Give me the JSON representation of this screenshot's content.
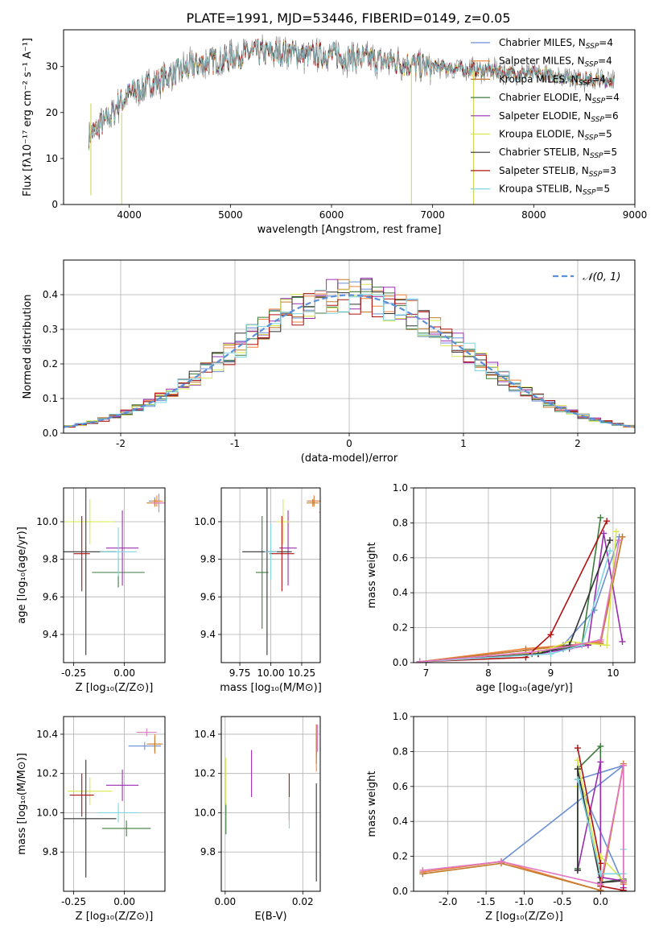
{
  "figure": {
    "title": "PLATE=1991, MJD=53446, FIBERID=0149, z=0.05"
  },
  "chart_data": [
    {
      "id": "spectrum",
      "type": "line",
      "title": "PLATE=1991, MJD=53446, FIBERID=0149, z=0.05",
      "xlabel": "wavelength [Angstrom, rest frame]",
      "ylabel": "Flux [fλ10⁻¹⁷ erg cm⁻² s⁻¹ A⁻¹]",
      "xlim": [
        3350,
        9000
      ],
      "ylim": [
        0,
        38
      ],
      "xticks": [
        4000,
        5000,
        6000,
        7000,
        8000,
        9000
      ],
      "yticks": [
        0,
        10,
        20,
        30
      ],
      "grid": false,
      "legend_position": "top-right",
      "continuum_x": [
        3600,
        3700,
        3800,
        3900,
        4000,
        4200,
        4400,
        4600,
        4800,
        5000,
        5200,
        5400,
        5600,
        5800,
        6000,
        6200,
        6400,
        6600,
        6800,
        7000,
        7200,
        7400,
        7600,
        7800,
        8000,
        8200,
        8400,
        8600,
        8800
      ],
      "continuum_y": [
        15,
        17,
        19,
        22,
        24,
        26,
        28,
        30,
        31,
        32,
        33,
        33,
        33,
        32.5,
        32.5,
        32,
        31.5,
        31,
        30.5,
        30,
        29.5,
        29.5,
        29,
        28.5,
        28.5,
        28,
        27.5,
        27,
        27
      ],
      "series": [
        {
          "name": "Chabrier MILES, N",
          "sub": "SSP",
          "suffix": "=4",
          "color": "#6b8fd6"
        },
        {
          "name": "Salpeter MILES, N",
          "sub": "SSP",
          "suffix": "=4",
          "color": "#f0823d"
        },
        {
          "name": "Kroupa MILES, N",
          "sub": "SSP",
          "suffix": "=4",
          "color": "#c27c2e"
        },
        {
          "name": "Chabrier ELODIE, N",
          "sub": "SSP",
          "suffix": "=4",
          "color": "#3d7a3d"
        },
        {
          "name": "Salpeter ELODIE, N",
          "sub": "SSP",
          "suffix": "=6",
          "color": "#9a2db0"
        },
        {
          "name": "Kroupa ELODIE, N",
          "sub": "SSP",
          "suffix": "=5",
          "color": "#d9e84d"
        },
        {
          "name": "Chabrier STELIB, N",
          "sub": "SSP",
          "suffix": "=5",
          "color": "#333333"
        },
        {
          "name": "Salpeter STELIB, N",
          "sub": "SSP",
          "suffix": "=3",
          "color": "#b01010"
        },
        {
          "name": "Kroupa STELIB, N",
          "sub": "SSP",
          "suffix": "=5",
          "color": "#7fd6e0"
        }
      ],
      "spikes": [
        {
          "x": 3620,
          "y0": 2,
          "y1": 22
        },
        {
          "x": 3925,
          "y0": 0,
          "y1": 20
        },
        {
          "x": 6790,
          "y0": 0,
          "y1": 32
        },
        {
          "x": 7405,
          "y0": 0,
          "y1": 29
        }
      ]
    },
    {
      "id": "residuals",
      "type": "line",
      "xlabel": "(data-model)/error",
      "ylabel": "Normed distribution",
      "xlim": [
        -2.5,
        2.5
      ],
      "ylim": [
        0,
        0.5
      ],
      "xticks": [
        -2,
        -1,
        0,
        1,
        2
      ],
      "yticks": [
        0.0,
        0.1,
        0.2,
        0.3,
        0.4
      ],
      "grid": true,
      "legend_position": "top-right",
      "legend_label": "𝒩(0, 1)",
      "gauss_color": "#5b8fd9",
      "bin_width": 0.1
    },
    {
      "id": "age-vs-Z",
      "type": "scatter",
      "xlabel": "Z [log₁₀(Z/Z⊙)]",
      "ylabel": "age  [log₁₀(age/yr)]",
      "xlim": [
        -0.3,
        0.2
      ],
      "ylim": [
        9.25,
        10.18
      ],
      "xticks": [
        -0.25,
        0.0
      ],
      "yticks": [
        9.4,
        9.6,
        9.8,
        10.0
      ],
      "grid": true,
      "points": [
        {
          "x": 0.15,
          "y": 10.11,
          "xerr": 0.03,
          "yerr": 0.02,
          "color": "#6b8fd6"
        },
        {
          "x": 0.16,
          "y": 10.11,
          "xerr": 0.03,
          "yerr": 0.03,
          "color": "#f0823d"
        },
        {
          "x": 0.15,
          "y": 10.1,
          "xerr": 0.04,
          "yerr": 0.02,
          "color": "#c27c2e"
        },
        {
          "x": -0.03,
          "y": 9.73,
          "xerr": 0.13,
          "yerr": 0.08,
          "color": "#3d7a3d"
        },
        {
          "x": -0.01,
          "y": 9.86,
          "xerr": 0.08,
          "yerr": 0.2,
          "color": "#9a2db0"
        },
        {
          "x": -0.17,
          "y": 10.0,
          "xerr": 0.12,
          "yerr": 0.12,
          "color": "#d9e84d"
        },
        {
          "x": -0.19,
          "y": 9.84,
          "xerr": 0.15,
          "yerr": 0.55,
          "color": "#333333"
        },
        {
          "x": -0.21,
          "y": 9.83,
          "xerr": 0.04,
          "yerr": 0.2,
          "color": "#b01010"
        },
        {
          "x": -0.03,
          "y": 9.84,
          "xerr": 0.09,
          "yerr": 0.13,
          "color": "#7fd6e0"
        },
        {
          "x": 0.17,
          "y": 10.1,
          "xerr": 0.03,
          "yerr": 0.05,
          "color": "#e377c2"
        }
      ]
    },
    {
      "id": "age-vs-mass",
      "type": "scatter",
      "xlabel": "mass [log₁₀(M/M⊙)]",
      "ylabel": "",
      "xlim": [
        9.6,
        10.4
      ],
      "ylim": [
        9.25,
        10.18
      ],
      "xticks": [
        9.75,
        10.0,
        10.25
      ],
      "yticks": [
        9.4,
        9.6,
        9.8,
        10.0
      ],
      "grid": true,
      "points": [
        {
          "x": 10.35,
          "y": 10.11,
          "xerr": 0.05,
          "yerr": 0.02,
          "color": "#6b8fd6"
        },
        {
          "x": 10.35,
          "y": 10.11,
          "xerr": 0.06,
          "yerr": 0.03,
          "color": "#f0823d"
        },
        {
          "x": 10.34,
          "y": 10.1,
          "xerr": 0.05,
          "yerr": 0.02,
          "color": "#c27c2e"
        },
        {
          "x": 9.93,
          "y": 9.73,
          "xerr": 0.05,
          "yerr": 0.3,
          "color": "#3d7a3d"
        },
        {
          "x": 10.14,
          "y": 9.86,
          "xerr": 0.07,
          "yerr": 0.2,
          "color": "#9a2db0"
        },
        {
          "x": 10.1,
          "y": 10.0,
          "xerr": 0.05,
          "yerr": 0.12,
          "color": "#d9e84d"
        },
        {
          "x": 9.97,
          "y": 9.84,
          "xerr": 0.2,
          "yerr": 0.55,
          "color": "#333333"
        },
        {
          "x": 10.09,
          "y": 9.83,
          "xerr": 0.1,
          "yerr": 0.2,
          "color": "#b01010"
        },
        {
          "x": 10.0,
          "y": 9.84,
          "xerr": 0.05,
          "yerr": 0.15,
          "color": "#7fd6e0"
        },
        {
          "x": 10.41,
          "y": 10.05,
          "xerr": 0.02,
          "yerr": 0.05,
          "color": "#e377c2"
        }
      ]
    },
    {
      "id": "weight-vs-age",
      "type": "line",
      "xlabel": "age  [log₁₀(age/yr)]",
      "ylabel": "mass weight",
      "xlim": [
        6.8,
        10.35
      ],
      "ylim": [
        0,
        1.0
      ],
      "xticks": [
        7,
        8,
        9,
        10
      ],
      "yticks": [
        0.0,
        0.2,
        0.4,
        0.6,
        0.8,
        1.0
      ],
      "grid": true,
      "series": [
        {
          "color": "#6b8fd6",
          "x": [
            6.9,
            8.6,
            9.2,
            9.7,
            10.1
          ],
          "y": [
            0.005,
            0.07,
            0.1,
            0.3,
            0.72
          ]
        },
        {
          "color": "#f0823d",
          "x": [
            6.9,
            8.6,
            9.3,
            9.8,
            10.15
          ],
          "y": [
            0.005,
            0.08,
            0.1,
            0.12,
            0.72
          ]
        },
        {
          "color": "#c27c2e",
          "x": [
            6.9,
            8.6,
            9.3,
            9.8,
            10.15
          ],
          "y": [
            0.005,
            0.07,
            0.1,
            0.11,
            0.72
          ]
        },
        {
          "color": "#3d7a3d",
          "x": [
            6.9,
            8.7,
            9.2,
            9.5,
            9.8
          ],
          "y": [
            0.005,
            0.05,
            0.08,
            0.1,
            0.83
          ]
        },
        {
          "color": "#9a2db0",
          "x": [
            6.9,
            8.8,
            9.3,
            9.6,
            9.85,
            10.15
          ],
          "y": [
            0.005,
            0.05,
            0.08,
            0.1,
            0.74,
            0.12
          ]
        },
        {
          "color": "#d9e84d",
          "x": [
            6.9,
            8.8,
            9.3,
            9.9,
            10.05
          ],
          "y": [
            0.005,
            0.06,
            0.12,
            0.1,
            0.75
          ]
        },
        {
          "color": "#333333",
          "x": [
            6.9,
            8.8,
            9.3,
            9.95
          ],
          "y": [
            0.005,
            0.05,
            0.1,
            0.7
          ]
        },
        {
          "color": "#b01010",
          "x": [
            6.9,
            8.6,
            9.0,
            9.9
          ],
          "y": [
            0.005,
            0.03,
            0.16,
            0.81
          ]
        },
        {
          "color": "#7fd6e0",
          "x": [
            6.9,
            9.0,
            9.5,
            9.95
          ],
          "y": [
            0.005,
            0.05,
            0.1,
            0.64
          ]
        },
        {
          "color": "#e377c2",
          "x": [
            6.9,
            8.7,
            9.4,
            9.8,
            10.1
          ],
          "y": [
            0.005,
            0.06,
            0.1,
            0.13,
            0.7
          ]
        }
      ]
    },
    {
      "id": "mass-vs-Z",
      "type": "scatter",
      "xlabel": "Z [log₁₀(Z/Z⊙)]",
      "ylabel": "mass [log₁₀(M/M⊙)]",
      "xlim": [
        -0.3,
        0.2
      ],
      "ylim": [
        9.6,
        10.49
      ],
      "xticks": [
        -0.25,
        0.0
      ],
      "yticks": [
        9.8,
        10.0,
        10.2,
        10.4
      ],
      "grid": true,
      "points": [
        {
          "x": 0.1,
          "y": 10.34,
          "xerr": 0.08,
          "yerr": 0.02,
          "color": "#6b8fd6"
        },
        {
          "x": 0.15,
          "y": 10.35,
          "xerr": 0.03,
          "yerr": 0.05,
          "color": "#f0823d"
        },
        {
          "x": 0.15,
          "y": 10.35,
          "xerr": 0.04,
          "yerr": 0.04,
          "color": "#c27c2e"
        },
        {
          "x": 0.01,
          "y": 9.92,
          "xerr": 0.12,
          "yerr": 0.04,
          "color": "#3d7a3d"
        },
        {
          "x": -0.01,
          "y": 10.14,
          "xerr": 0.08,
          "yerr": 0.08,
          "color": "#9a2db0"
        },
        {
          "x": -0.17,
          "y": 10.11,
          "xerr": 0.11,
          "yerr": 0.07,
          "color": "#d9e84d"
        },
        {
          "x": -0.19,
          "y": 9.97,
          "xerr": 0.15,
          "yerr": 0.3,
          "color": "#333333"
        },
        {
          "x": -0.21,
          "y": 10.09,
          "xerr": 0.06,
          "yerr": 0.11,
          "color": "#b01010"
        },
        {
          "x": -0.03,
          "y": 10.0,
          "xerr": 0.1,
          "yerr": 0.05,
          "color": "#7fd6e0"
        },
        {
          "x": 0.11,
          "y": 10.41,
          "xerr": 0.05,
          "yerr": 0.02,
          "color": "#e377c2"
        }
      ]
    },
    {
      "id": "mass-vs-EBV",
      "type": "scatter",
      "xlabel": "E(B-V)",
      "ylabel": "",
      "xlim": [
        -0.001,
        0.0245
      ],
      "ylim": [
        9.6,
        10.49
      ],
      "xticks": [
        0.0,
        0.02
      ],
      "yticks": [
        9.8,
        10.0,
        10.2,
        10.4
      ],
      "grid": true,
      "points": [
        {
          "x": 0.0235,
          "y": 10.34,
          "xerr": 0,
          "yerr": 0.05,
          "color": "#6b8fd6"
        },
        {
          "x": 0.0235,
          "y": 10.33,
          "xerr": 0,
          "yerr": 0.12,
          "color": "#f0823d"
        },
        {
          "x": 0.0235,
          "y": 10.35,
          "xerr": 0,
          "yerr": 0.1,
          "color": "#c27c2e"
        },
        {
          "x": 0.0002,
          "y": 9.97,
          "xerr": 0,
          "yerr": 0.08,
          "color": "#3d7a3d"
        },
        {
          "x": 0.0068,
          "y": 10.2,
          "xerr": 0,
          "yerr": 0.12,
          "color": "#9a2db0"
        },
        {
          "x": 0.0002,
          "y": 10.16,
          "xerr": 0,
          "yerr": 0.12,
          "color": "#d9e84d"
        },
        {
          "x": 0.0235,
          "y": 9.9,
          "xerr": 0,
          "yerr": 0.25,
          "color": "#333333"
        },
        {
          "x": 0.0165,
          "y": 10.08,
          "xerr": 0,
          "yerr": 0.12,
          "color": "#b01010"
        },
        {
          "x": 0.0165,
          "y": 10.0,
          "xerr": 0,
          "yerr": 0.08,
          "color": "#7fd6e0"
        },
        {
          "x": 0.0238,
          "y": 10.38,
          "xerr": 0,
          "yerr": 0.07,
          "color": "#e377c2"
        }
      ]
    },
    {
      "id": "weight-vs-Z",
      "type": "line",
      "xlabel": "Z [log₁₀(Z/Z⊙)]",
      "ylabel": "mass weight",
      "xlim": [
        -2.45,
        0.45
      ],
      "ylim": [
        0,
        1.0
      ],
      "xticks": [
        -2.0,
        -1.5,
        -1.0,
        -0.5,
        0.0
      ],
      "yticks": [
        0.0,
        0.2,
        0.4,
        0.6,
        0.8,
        1.0
      ],
      "grid": true,
      "series": [
        {
          "color": "#6b8fd6",
          "x": [
            -2.33,
            -1.3,
            0.3,
            -0.3,
            0.3
          ],
          "y": [
            0.11,
            0.17,
            0.72,
            0.64,
            0.04
          ]
        },
        {
          "color": "#f0823d",
          "x": [
            -2.33,
            -1.3,
            0.0,
            0.3,
            0.3
          ],
          "y": [
            0.11,
            0.17,
            0.005,
            0.72,
            0.04
          ]
        },
        {
          "color": "#c27c2e",
          "x": [
            -2.33,
            -1.3,
            0.0,
            0.3,
            0.3
          ],
          "y": [
            0.1,
            0.16,
            0.005,
            0.73,
            0.05
          ]
        },
        {
          "color": "#3d7a3d",
          "x": [
            -0.3,
            -0.3,
            0.0,
            0.0,
            0.3
          ],
          "y": [
            0.13,
            0.7,
            0.83,
            0.05,
            0.07
          ]
        },
        {
          "color": "#9a2db0",
          "x": [
            -0.3,
            0.0,
            0.0,
            0.3,
            0.3
          ],
          "y": [
            0.12,
            0.74,
            0.08,
            0.06,
            0.02
          ]
        },
        {
          "color": "#d9e84d",
          "x": [
            -0.3,
            -0.3,
            0.0,
            0.0,
            0.3
          ],
          "y": [
            0.6,
            0.75,
            0.1,
            0.2,
            0.06
          ]
        },
        {
          "color": "#333333",
          "x": [
            -0.3,
            -0.3,
            0.0,
            0.3
          ],
          "y": [
            0.12,
            0.7,
            0.05,
            0.06
          ]
        },
        {
          "color": "#b01010",
          "x": [
            -0.3,
            0.0,
            0.0,
            0.3
          ],
          "y": [
            0.82,
            0.16,
            0.03,
            0.005
          ]
        },
        {
          "color": "#7fd6e0",
          "x": [
            -0.3,
            0.0,
            0.3,
            0.3
          ],
          "y": [
            0.64,
            0.1,
            0.1,
            0.24
          ]
        },
        {
          "color": "#e377c2",
          "x": [
            -2.33,
            -1.3,
            0.0,
            0.3,
            0.3
          ],
          "y": [
            0.12,
            0.17,
            0.04,
            0.72,
            0.06
          ]
        }
      ]
    }
  ]
}
